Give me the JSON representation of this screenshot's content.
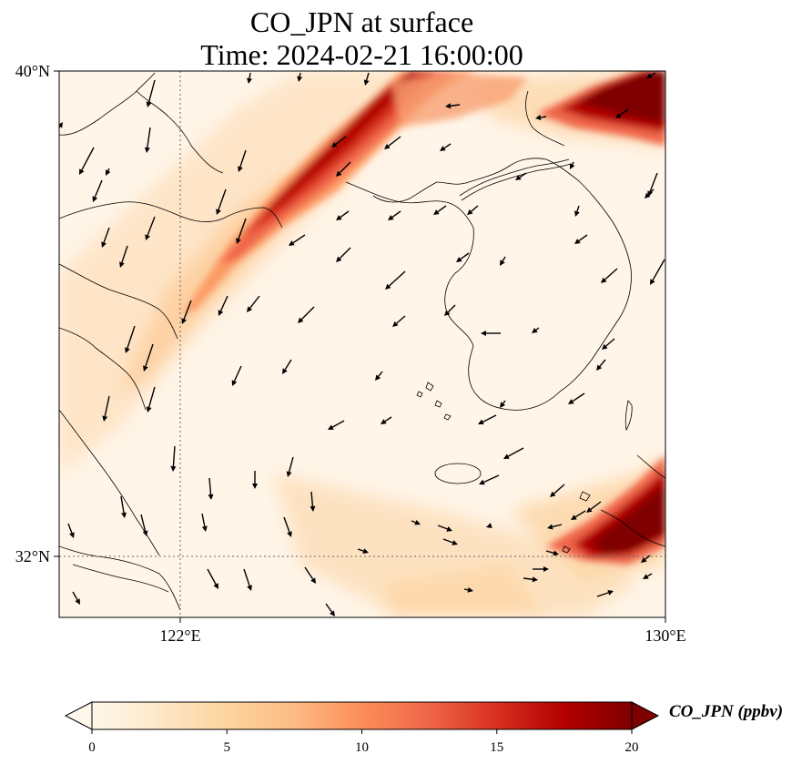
{
  "title": {
    "line1": "CO_JPN at surface",
    "line2": "Time: 2024-02-21 16:00:00"
  },
  "axes": {
    "lat_ticks": [
      {
        "value": 40,
        "label": "40°N"
      },
      {
        "value": 32,
        "label": "32°N"
      }
    ],
    "lon_ticks": [
      {
        "value": 122,
        "label": "122°E"
      },
      {
        "value": 130,
        "label": "130°E"
      }
    ],
    "lon_range": [
      120,
      130
    ],
    "lat_range": [
      31,
      40
    ],
    "gridlines": "dotted at 122°E and 32°N"
  },
  "colorbar": {
    "label": "CO_JPN (ppbv)",
    "ticks": [
      "0",
      "5",
      "10",
      "15",
      "20"
    ],
    "min": 0,
    "max": 20,
    "colormap": "OrRd",
    "extend": "both",
    "colors": [
      "#fff7ec",
      "#fee8c8",
      "#fdd49e",
      "#fdbb84",
      "#fc8d59",
      "#ef6548",
      "#d7301f",
      "#b30000",
      "#7f0000"
    ]
  },
  "map": {
    "variable": "CO_JPN",
    "level": "surface",
    "overlay": "wind vectors",
    "coastline_color": "#000000"
  }
}
